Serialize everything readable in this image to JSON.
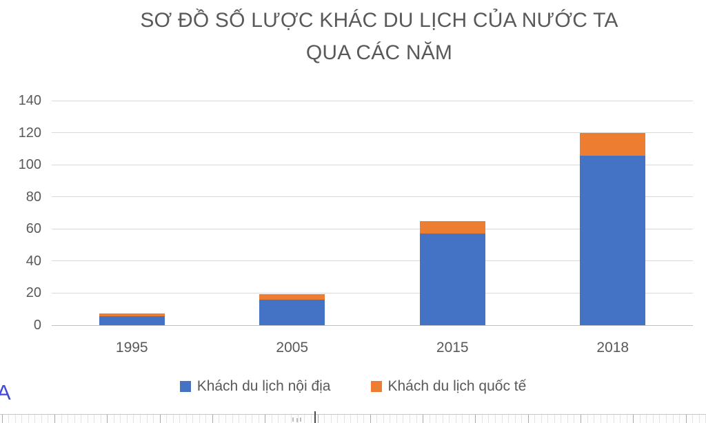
{
  "chart_data": {
    "type": "bar",
    "stacked": true,
    "title_lines": [
      "SƠ ĐỒ SỐ LƯỢC KHÁC DU LỊCH CỦA NƯỚC TA",
      "QUA CÁC NĂM"
    ],
    "categories": [
      "1995",
      "2005",
      "2015",
      "2018"
    ],
    "series": [
      {
        "name": "Khách du lịch nội địa",
        "color": "#4472C4",
        "values": [
          5.5,
          16,
          57,
          105.5
        ]
      },
      {
        "name": "Khách du lịch quốc tế",
        "color": "#ED7D31",
        "values": [
          2,
          3.5,
          8,
          14.5
        ]
      }
    ],
    "totals": [
      7.5,
      19.5,
      65,
      120
    ],
    "y_ticks": [
      0,
      20,
      40,
      60,
      80,
      100,
      120,
      140
    ],
    "ylim": [
      0,
      140
    ],
    "xlabel": "",
    "ylabel": "",
    "grid": true,
    "legend_position": "bottom",
    "colors": {
      "text": "#595959",
      "gridline": "#D9D9D9",
      "axis_line": "#BFBFBF"
    }
  },
  "page": {
    "corner_text": "A",
    "corner_text_color": "#4149D8"
  }
}
